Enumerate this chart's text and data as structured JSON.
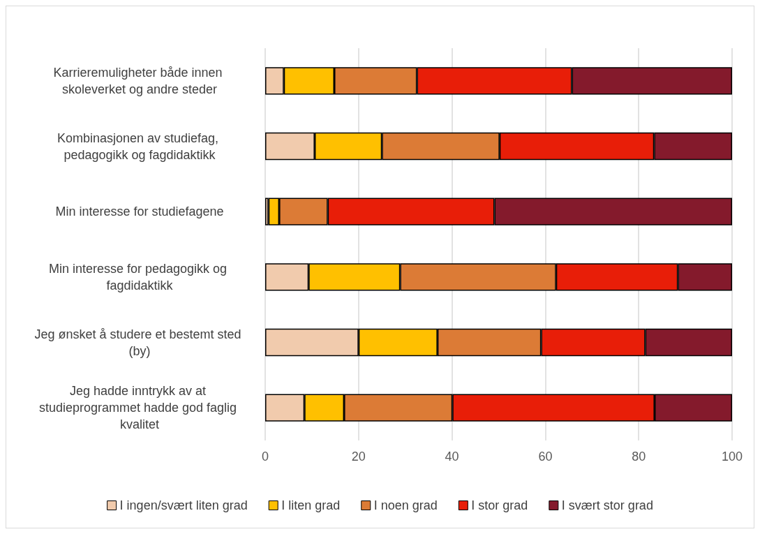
{
  "chart_data": {
    "type": "bar",
    "orientation": "horizontal",
    "stacked": true,
    "categories": [
      "Karrieremuligheter både innen skoleverket og andre steder",
      "Kombinasjonen av studiefag, pedagogikk og fagdidaktikk",
      "Min interesse for studiefagene",
      "Min interesse for pedagogikk og fagdidaktikk",
      "Jeg ønsket å studere et bestemt sted (by)",
      "Jeg hadde inntrykk av at studieprogrammet hadde god faglig kvalitet"
    ],
    "series": [
      {
        "name": "I ingen/svært liten grad",
        "color": "#f1cbad",
        "values": [
          4.0,
          10.6,
          0.7,
          9.3,
          20.0,
          8.4
        ]
      },
      {
        "name": "I liten grad",
        "color": "#ffc000",
        "values": [
          10.8,
          14.4,
          2.3,
          19.6,
          16.9,
          8.5
        ]
      },
      {
        "name": "I noen grad",
        "color": "#dc7b36",
        "values": [
          17.7,
          25.2,
          10.4,
          33.4,
          22.2,
          23.2
        ]
      },
      {
        "name": "I stor grad",
        "color": "#e81e08",
        "values": [
          33.2,
          33.1,
          35.7,
          26.1,
          22.3,
          43.3
        ]
      },
      {
        "name": "I svært stor grad",
        "color": "#841a2c",
        "values": [
          34.3,
          16.7,
          50.9,
          11.6,
          18.6,
          16.6
        ]
      }
    ],
    "xlim": [
      0,
      100
    ],
    "xticks": [
      0,
      20,
      40,
      60,
      80,
      100
    ],
    "grid": "x",
    "legend": "bottom"
  }
}
